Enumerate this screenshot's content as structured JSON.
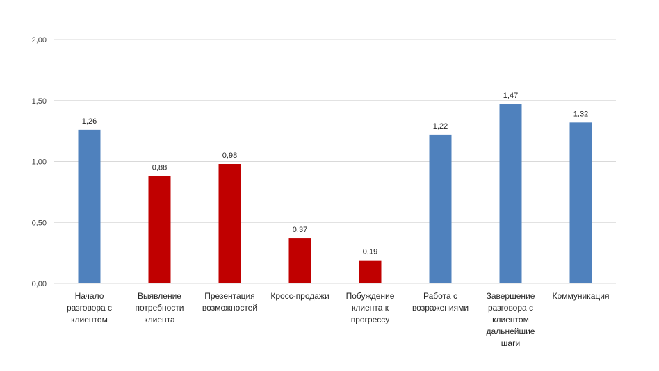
{
  "chart_data": {
    "type": "bar",
    "categories": [
      [
        "Начало",
        "разговора с",
        "клиентом"
      ],
      [
        "Выявление",
        "потребности",
        "клиента"
      ],
      [
        "Презентация",
        "возможностей"
      ],
      [
        "Кросс-продажи"
      ],
      [
        "Побуждение",
        "клиента к",
        "прогрессу"
      ],
      [
        "Работа с",
        "возражениями"
      ],
      [
        "Завершение",
        "разговора с",
        "клиентом",
        "дальнейшие",
        "шаги"
      ],
      [
        "Коммуникация"
      ]
    ],
    "values": [
      1.26,
      0.88,
      0.98,
      0.37,
      0.19,
      1.22,
      1.47,
      1.32
    ],
    "value_labels": [
      "1,26",
      "0,88",
      "0,98",
      "0,37",
      "0,19",
      "1,22",
      "1,47",
      "1,32"
    ],
    "bar_colors": [
      "#4F81BD",
      "#C00000",
      "#C00000",
      "#C00000",
      "#C00000",
      "#4F81BD",
      "#4F81BD",
      "#4F81BD"
    ],
    "y_ticks": [
      0,
      0.5,
      1.0,
      1.5,
      2.0
    ],
    "y_tick_labels": [
      "0,00",
      "0,50",
      "1,00",
      "1,50",
      "2,00"
    ],
    "ylim": [
      0,
      2.0
    ],
    "grid": true,
    "gridline_color": "#D9D9D9",
    "legend": "none",
    "title": "",
    "xlabel": "",
    "ylabel": ""
  }
}
